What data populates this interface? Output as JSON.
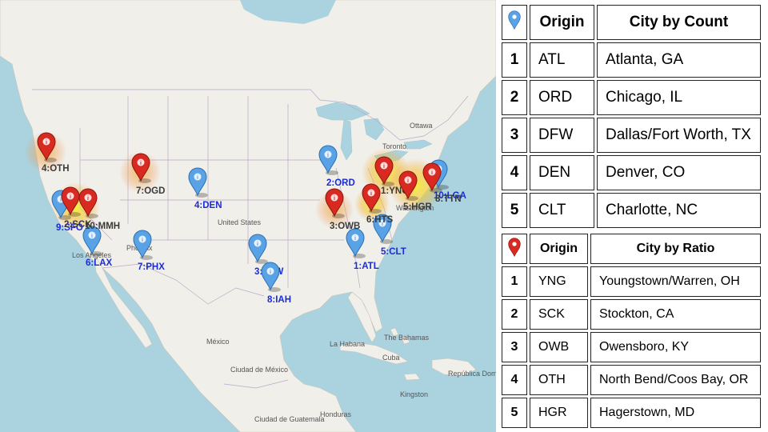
{
  "map": {
    "place_labels": {
      "ottawa": "Ottawa",
      "toronto": "Toronto",
      "united_states": "United States",
      "mexico": "México",
      "mexico_city": "Ciudad de México",
      "la_habana": "La Habana",
      "cuba": "Cuba",
      "bahamas": "The Bahamas",
      "dominicana": "República Dominicana",
      "kingston": "Kingston",
      "honduras": "Honduras",
      "guatemala": "Ciudad de Guatemala",
      "washington": "Washington",
      "phoenix": "Phoenix",
      "los_angeles": "Los Angeles"
    },
    "count_markers": [
      {
        "label": "1:ATL"
      },
      {
        "label": "2:ORD"
      },
      {
        "label": "3:DFW"
      },
      {
        "label": "4:DEN"
      },
      {
        "label": "5:CLT"
      },
      {
        "label": "6:LAX"
      },
      {
        "label": "7:PHX"
      },
      {
        "label": "8:IAH"
      },
      {
        "label": "9:SFO"
      },
      {
        "label": "10:LGA"
      }
    ],
    "ratio_markers": [
      {
        "label": "1:YNG"
      },
      {
        "label": "2:SCK"
      },
      {
        "label": "3:OWB"
      },
      {
        "label": "4:OTH"
      },
      {
        "label": "5:HGR"
      },
      {
        "label": "6:HTS"
      },
      {
        "label": "7:OGD"
      },
      {
        "label": "8:TTN"
      },
      {
        "label": "10:MMH"
      }
    ],
    "colors": {
      "count_pin": "#4a9ad4",
      "ratio_pin": "#c9302c",
      "land": "#f1efe9",
      "water": "#aad3df"
    }
  },
  "count_table": {
    "icon": "blue-pin-icon",
    "header_origin": "Origin",
    "header_city": "City by Count",
    "rows": [
      {
        "rank": "1",
        "origin": "ATL",
        "city": "Atlanta, GA"
      },
      {
        "rank": "2",
        "origin": "ORD",
        "city": "Chicago, IL"
      },
      {
        "rank": "3",
        "origin": "DFW",
        "city": "Dallas/Fort Worth, TX"
      },
      {
        "rank": "4",
        "origin": "DEN",
        "city": "Denver, CO"
      },
      {
        "rank": "5",
        "origin": "CLT",
        "city": "Charlotte, NC"
      }
    ]
  },
  "ratio_table": {
    "icon": "red-pin-icon",
    "header_origin": "Origin",
    "header_city": "City by Ratio",
    "rows": [
      {
        "rank": "1",
        "origin": "YNG",
        "city": "Youngstown/Warren, OH"
      },
      {
        "rank": "2",
        "origin": "SCK",
        "city": "Stockton, CA"
      },
      {
        "rank": "3",
        "origin": "OWB",
        "city": "Owensboro, KY"
      },
      {
        "rank": "4",
        "origin": "OTH",
        "city": "North Bend/Coos Bay, OR"
      },
      {
        "rank": "5",
        "origin": "HGR",
        "city": "Hagerstown, MD"
      }
    ]
  }
}
